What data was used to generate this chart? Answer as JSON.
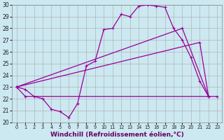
{
  "xlabel": "Windchill (Refroidissement éolien,°C)",
  "bg_color": "#cce8f0",
  "grid_color": "#aaaaaa",
  "line_color": "#990099",
  "xmin": 0,
  "xmax": 23,
  "ymin": 20,
  "ymax": 30,
  "line1_x": [
    0,
    1,
    2,
    3,
    4,
    5,
    6,
    7,
    8,
    9,
    10,
    11,
    12,
    13,
    14,
    15,
    16,
    17,
    18,
    19,
    20,
    21,
    22
  ],
  "line1_y": [
    23.0,
    22.8,
    22.2,
    22.0,
    21.1,
    20.9,
    20.4,
    21.6,
    24.8,
    25.2,
    27.9,
    28.0,
    29.2,
    29.0,
    29.9,
    30.0,
    29.9,
    29.8,
    28.0,
    27.0,
    25.5,
    23.5,
    22.2
  ],
  "line2_x": [
    0,
    19,
    22
  ],
  "line2_y": [
    23.0,
    28.0,
    22.2
  ],
  "line3_x": [
    0,
    21,
    22
  ],
  "line3_y": [
    23.0,
    26.8,
    22.2
  ],
  "line4_x": [
    0,
    1,
    23
  ],
  "line4_y": [
    23.0,
    22.2,
    22.2
  ],
  "xticks": [
    0,
    1,
    2,
    3,
    4,
    5,
    6,
    7,
    8,
    9,
    10,
    11,
    12,
    13,
    14,
    15,
    16,
    17,
    18,
    19,
    20,
    21,
    22,
    23
  ],
  "yticks": [
    20,
    21,
    22,
    23,
    24,
    25,
    26,
    27,
    28,
    29,
    30
  ],
  "tick_fontsize": 5.5,
  "xlabel_fontsize": 6.5
}
